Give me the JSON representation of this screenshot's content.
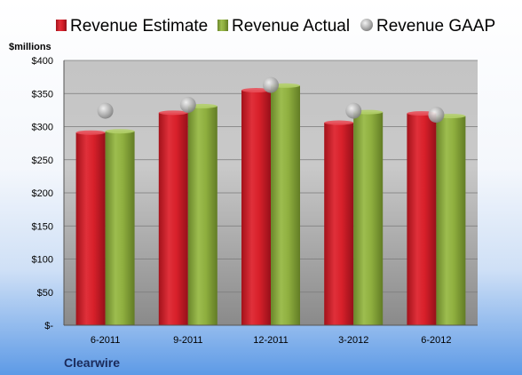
{
  "chart_data": {
    "type": "bar",
    "unit_label": "$millions",
    "company": "Clearwire",
    "categories": [
      "6-2011",
      "9-2011",
      "12-2011",
      "3-2012",
      "6-2012"
    ],
    "series": [
      {
        "name": "Revenue Estimate",
        "kind": "bar",
        "color": "#d8202a",
        "values": [
          291,
          321,
          355,
          306,
          320
        ]
      },
      {
        "name": "Revenue Actual",
        "kind": "bar",
        "color": "#8faf3f",
        "values": [
          293,
          331,
          362,
          322,
          316
        ]
      },
      {
        "name": "Revenue GAAP",
        "kind": "marker",
        "color": "#a8a8a8",
        "values": [
          324,
          333,
          363,
          324,
          318
        ]
      }
    ],
    "yticks": [
      "$-",
      "$50",
      "$100",
      "$150",
      "$200",
      "$250",
      "$300",
      "$350",
      "$400"
    ],
    "ylim": [
      0,
      400
    ],
    "grid": true,
    "legend_position": "top"
  }
}
